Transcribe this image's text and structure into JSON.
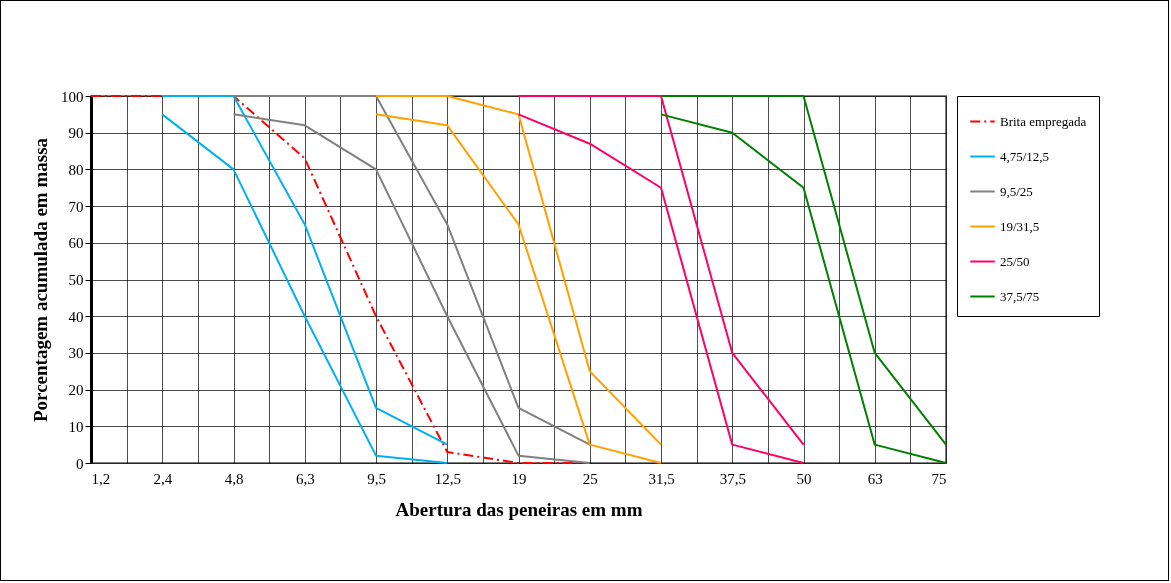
{
  "chart_data": {
    "type": "line",
    "xlabel": "Abertura das peneiras em mm",
    "ylabel": "Porcentagem acumulada em massa",
    "categories": [
      "1,2",
      "2,4",
      "4,8",
      "6,3",
      "9,5",
      "12,5",
      "19",
      "25",
      "31,5",
      "37,5",
      "50",
      "63",
      "75"
    ],
    "ylim": [
      0,
      100
    ],
    "yticks": [
      0,
      10,
      20,
      30,
      40,
      50,
      60,
      70,
      80,
      90,
      100
    ],
    "grid": true,
    "legend": "right",
    "marker": "none",
    "series": [
      {
        "name": "Brita empregada",
        "color": "#ff0000",
        "line_style": "dashed",
        "values": [
          100,
          100,
          100,
          83,
          40,
          3,
          0,
          0,
          null,
          null,
          null,
          null,
          null
        ]
      },
      {
        "name": "4,75/12,5",
        "color": "#00b0f0",
        "values": [
          null,
          100,
          100,
          65,
          15,
          5,
          null,
          null,
          null,
          null,
          null,
          null,
          null
        ]
      },
      {
        "color": "#00b0f0",
        "values": [
          null,
          95,
          80,
          40,
          2,
          0,
          null,
          null,
          null,
          null,
          null,
          null,
          null
        ]
      },
      {
        "name": "9,5/25",
        "color": "#808080",
        "values": [
          null,
          null,
          100,
          100,
          100,
          65,
          15,
          5,
          null,
          null,
          null,
          null,
          null
        ]
      },
      {
        "color": "#808080",
        "values": [
          null,
          null,
          95,
          92,
          80,
          40,
          2,
          0,
          null,
          null,
          null,
          null,
          null
        ]
      },
      {
        "name": "19/31,5",
        "color": "#ffa000",
        "values": [
          null,
          null,
          null,
          null,
          100,
          100,
          95,
          25,
          5,
          null,
          null,
          null,
          null
        ]
      },
      {
        "color": "#ffa000",
        "values": [
          null,
          null,
          null,
          null,
          95,
          92,
          65,
          5,
          0,
          null,
          null,
          null,
          null
        ]
      },
      {
        "name": "25/50",
        "color": "#ff0066",
        "values": [
          null,
          null,
          null,
          null,
          null,
          null,
          100,
          100,
          100,
          30,
          5,
          null,
          null
        ]
      },
      {
        "color": "#ff0066",
        "values": [
          null,
          null,
          null,
          null,
          null,
          null,
          95,
          87,
          75,
          5,
          0,
          null,
          null
        ]
      },
      {
        "name": "37,5/75",
        "color": "#008000",
        "values": [
          null,
          null,
          null,
          null,
          null,
          null,
          null,
          null,
          100,
          100,
          100,
          30,
          5
        ]
      },
      {
        "color": "#008000",
        "values": [
          null,
          null,
          null,
          null,
          null,
          null,
          null,
          null,
          95,
          90,
          75,
          5,
          0
        ]
      }
    ]
  }
}
